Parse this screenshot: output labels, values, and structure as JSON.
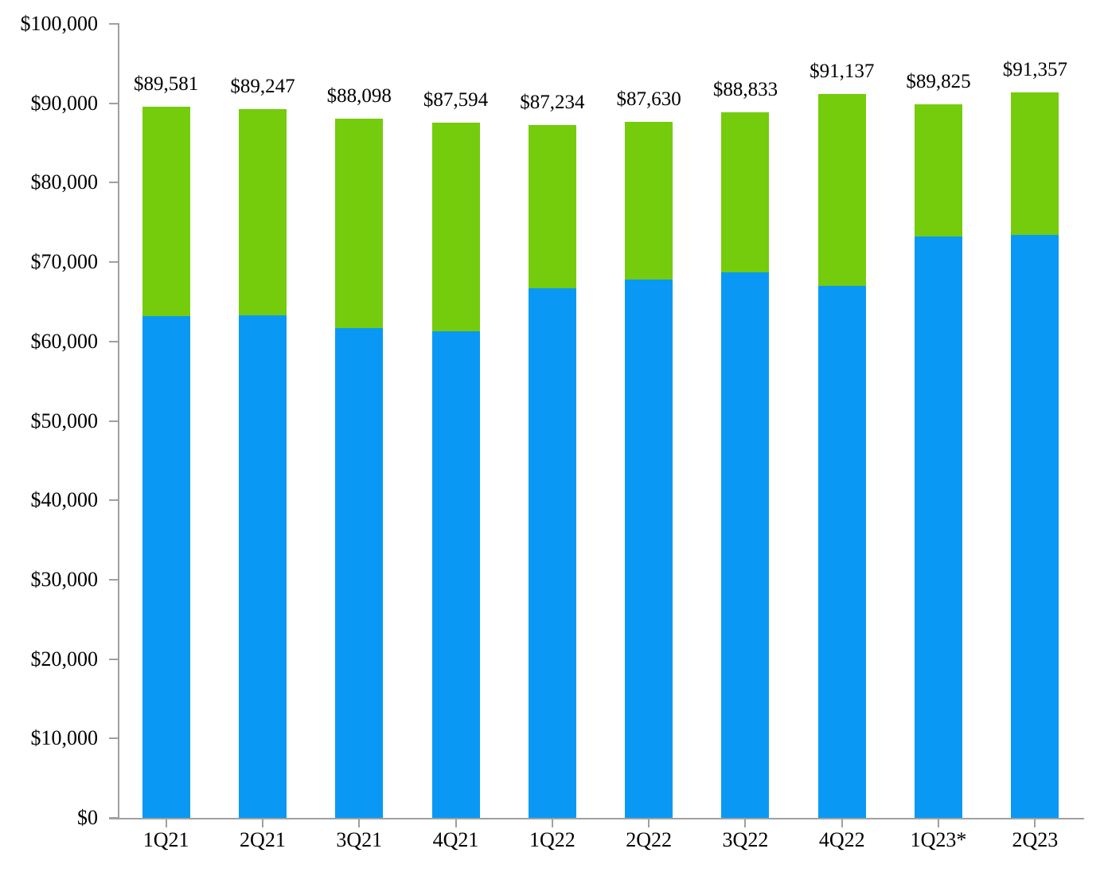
{
  "chart_data": {
    "type": "bar",
    "stacked": true,
    "title": "",
    "xlabel": "",
    "ylabel": "",
    "categories": [
      "1Q21",
      "2Q21",
      "3Q21",
      "4Q21",
      "1Q22",
      "2Q22",
      "3Q22",
      "4Q22",
      "1Q23*",
      "2Q23"
    ],
    "series": [
      {
        "name": "bottom-segment-blue",
        "color": "#0999f5",
        "values": [
          63200,
          63300,
          61700,
          61300,
          66700,
          67800,
          68700,
          67000,
          73200,
          73400
        ]
      },
      {
        "name": "top-segment-green",
        "color": "#74cc0c",
        "values": [
          26381,
          25947,
          26398,
          26294,
          20534,
          19830,
          20133,
          24137,
          16625,
          17957
        ]
      }
    ],
    "totals": [
      89581,
      89247,
      88098,
      87594,
      87234,
      87630,
      88833,
      91137,
      89825,
      91357
    ],
    "total_labels": [
      "$89,581",
      "$89,247",
      "$88,098",
      "$87,594",
      "$87,234",
      "$87,630",
      "$88,833",
      "$91,137",
      "$89,825",
      "$91,357"
    ],
    "ylim": [
      0,
      100000
    ],
    "ytick_step": 10000,
    "ytick_labels": [
      "$0",
      "$10,000",
      "$20,000",
      "$30,000",
      "$40,000",
      "$50,000",
      "$60,000",
      "$70,000",
      "$80,000",
      "$90,000",
      "$100,000"
    ],
    "grid": false,
    "legend": "none",
    "axis_color": "#a0a0a0",
    "text_color": "#000000",
    "background_color": "#ffffff"
  }
}
